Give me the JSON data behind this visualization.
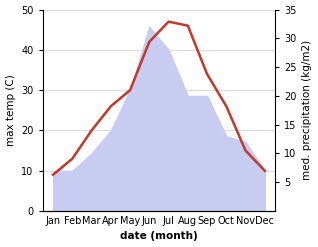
{
  "months": [
    "Jan",
    "Feb",
    "Mar",
    "Apr",
    "May",
    "Jun",
    "Jul",
    "Aug",
    "Sep",
    "Oct",
    "Nov",
    "Dec"
  ],
  "temp": [
    9,
    13,
    20,
    26,
    30,
    42,
    47,
    46,
    34,
    26,
    15,
    10
  ],
  "precip": [
    7,
    7,
    10,
    14,
    21,
    32,
    28,
    20,
    20,
    13,
    12,
    7
  ],
  "temp_color": "#c0392b",
  "precip_fill_color": "#c8ccf0",
  "temp_ylim": [
    0,
    50
  ],
  "precip_ylim": [
    0,
    35
  ],
  "temp_yticks": [
    0,
    10,
    20,
    30,
    40,
    50
  ],
  "precip_yticks": [
    5,
    10,
    15,
    20,
    25,
    30,
    35
  ],
  "ylabel_left": "max temp (C)",
  "ylabel_right": "med. precipitation (kg/m2)",
  "xlabel": "date (month)",
  "bg_color": "#ffffff",
  "temp_linewidth": 1.8,
  "label_fontsize": 7.5,
  "tick_fontsize": 7
}
